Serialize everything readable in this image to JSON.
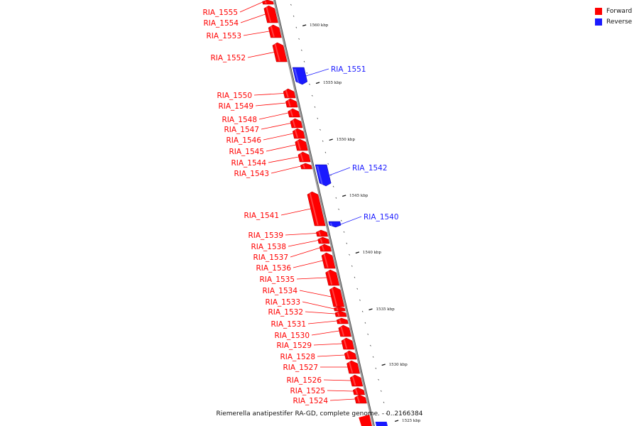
{
  "legend": {
    "forward_label": "Forward",
    "reverse_label": "Reverse"
  },
  "colors": {
    "forward": "#ff0000",
    "reverse": "#1a1aff",
    "backbone": "#999999"
  },
  "caption": "Riemerella anatipestifer RA-GD, complete genome. - 0..2166384",
  "ticks": [
    "1560 kbp",
    "1555 kbp",
    "1550 kbp",
    "1545 kbp",
    "1540 kbp",
    "1535 kbp",
    "1530 kbp",
    "1525 kbp"
  ],
  "genes": [
    {
      "name": "RIA_1555",
      "strand": "forward"
    },
    {
      "name": "RIA_1554",
      "strand": "forward"
    },
    {
      "name": "RIA_1553",
      "strand": "forward"
    },
    {
      "name": "RIA_1552",
      "strand": "forward"
    },
    {
      "name": "RIA_1551",
      "strand": "reverse"
    },
    {
      "name": "RIA_1550",
      "strand": "forward"
    },
    {
      "name": "RIA_1549",
      "strand": "forward"
    },
    {
      "name": "RIA_1548",
      "strand": "forward"
    },
    {
      "name": "RIA_1547",
      "strand": "forward"
    },
    {
      "name": "RIA_1546",
      "strand": "forward"
    },
    {
      "name": "RIA_1545",
      "strand": "forward"
    },
    {
      "name": "RIA_1544",
      "strand": "forward"
    },
    {
      "name": "RIA_1543",
      "strand": "forward"
    },
    {
      "name": "RIA_1542",
      "strand": "reverse"
    },
    {
      "name": "RIA_1541",
      "strand": "forward"
    },
    {
      "name": "RIA_1540",
      "strand": "reverse"
    },
    {
      "name": "RIA_1539",
      "strand": "forward"
    },
    {
      "name": "RIA_1538",
      "strand": "forward"
    },
    {
      "name": "RIA_1537",
      "strand": "forward"
    },
    {
      "name": "RIA_1536",
      "strand": "forward"
    },
    {
      "name": "RIA_1535",
      "strand": "forward"
    },
    {
      "name": "RIA_1534",
      "strand": "forward"
    },
    {
      "name": "RIA_1533",
      "strand": "forward"
    },
    {
      "name": "RIA_1532",
      "strand": "forward"
    },
    {
      "name": "RIA_1531",
      "strand": "forward"
    },
    {
      "name": "RIA_1530",
      "strand": "forward"
    },
    {
      "name": "RIA_1529",
      "strand": "forward"
    },
    {
      "name": "RIA_1528",
      "strand": "forward"
    },
    {
      "name": "RIA_1527",
      "strand": "forward"
    },
    {
      "name": "RIA_1526",
      "strand": "forward"
    },
    {
      "name": "RIA_1525",
      "strand": "forward"
    },
    {
      "name": "RIA_1524",
      "strand": "forward"
    }
  ]
}
